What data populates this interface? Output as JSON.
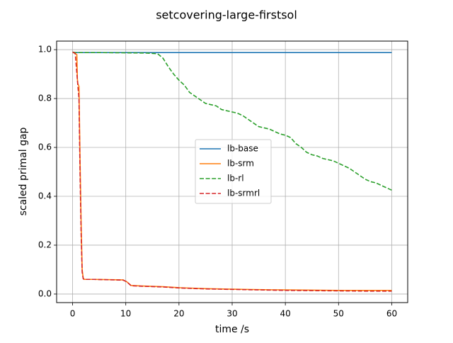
{
  "chart_data": {
    "type": "line",
    "title": "setcovering-large-firstsol",
    "xlabel": "time /s",
    "ylabel": "scaled primal gap",
    "xlim": [
      -3,
      63
    ],
    "ylim": [
      -0.035,
      1.035
    ],
    "xticks": [
      0,
      10,
      20,
      30,
      40,
      50,
      60
    ],
    "yticks": [
      0.0,
      0.2,
      0.4,
      0.6,
      0.8,
      1.0
    ],
    "xtick_labels": [
      "0",
      "10",
      "20",
      "30",
      "40",
      "50",
      "60"
    ],
    "ytick_labels": [
      "0.0",
      "0.2",
      "0.4",
      "0.6",
      "0.8",
      "1.0"
    ],
    "grid": true,
    "legend_position": "center-right",
    "series": [
      {
        "name": "lb-base",
        "color": "#1f77b4",
        "style": "solid",
        "x": [
          0,
          0.5,
          60
        ],
        "y": [
          0.99,
          0.988,
          0.988
        ]
      },
      {
        "name": "lb-srm",
        "color": "#ff7f0e",
        "style": "solid",
        "x": [
          0,
          0.8,
          0.9,
          1.0,
          1.2,
          1.4,
          1.6,
          1.8,
          2.0,
          2.2,
          4,
          9.5,
          10.2,
          11,
          13,
          17,
          20,
          25,
          30,
          35,
          40,
          45,
          50,
          55,
          60
        ],
        "y": [
          0.99,
          0.98,
          0.88,
          0.86,
          0.85,
          0.55,
          0.3,
          0.1,
          0.065,
          0.06,
          0.06,
          0.058,
          0.05,
          0.035,
          0.033,
          0.03,
          0.026,
          0.022,
          0.02,
          0.018,
          0.017,
          0.016,
          0.015,
          0.015,
          0.015
        ]
      },
      {
        "name": "lb-rl",
        "color": "#2ca02c",
        "style": "dashed",
        "x": [
          0,
          0.5,
          5,
          10,
          14,
          16,
          17,
          18,
          19,
          20,
          21,
          22,
          23,
          24,
          25,
          26,
          27,
          28,
          29,
          30,
          31,
          32,
          33,
          34,
          35,
          36,
          37,
          38,
          39,
          40,
          41,
          42,
          43,
          44,
          45,
          46,
          47,
          48,
          49,
          50,
          51,
          52,
          53,
          54,
          55,
          56,
          57,
          58,
          59,
          60
        ],
        "y": [
          0.99,
          0.988,
          0.988,
          0.987,
          0.986,
          0.983,
          0.965,
          0.93,
          0.9,
          0.875,
          0.855,
          0.825,
          0.81,
          0.795,
          0.78,
          0.775,
          0.77,
          0.755,
          0.75,
          0.745,
          0.74,
          0.73,
          0.715,
          0.7,
          0.685,
          0.68,
          0.675,
          0.665,
          0.655,
          0.65,
          0.64,
          0.615,
          0.6,
          0.58,
          0.57,
          0.565,
          0.555,
          0.55,
          0.545,
          0.535,
          0.525,
          0.515,
          0.5,
          0.485,
          0.47,
          0.46,
          0.455,
          0.445,
          0.435,
          0.425
        ]
      },
      {
        "name": "lb-srmrl",
        "color": "#d62728",
        "style": "dashed",
        "x": [
          0,
          0.5,
          0.7,
          1.0,
          1.2,
          1.4,
          1.6,
          1.8,
          2.0,
          2.2,
          4,
          9.5,
          10.2,
          11,
          13,
          17,
          20,
          25,
          30,
          35,
          40,
          45,
          50,
          55,
          60
        ],
        "y": [
          0.99,
          0.985,
          0.93,
          0.85,
          0.8,
          0.5,
          0.25,
          0.09,
          0.062,
          0.06,
          0.06,
          0.057,
          0.05,
          0.034,
          0.032,
          0.029,
          0.025,
          0.021,
          0.019,
          0.017,
          0.015,
          0.014,
          0.013,
          0.012,
          0.012
        ]
      }
    ]
  }
}
